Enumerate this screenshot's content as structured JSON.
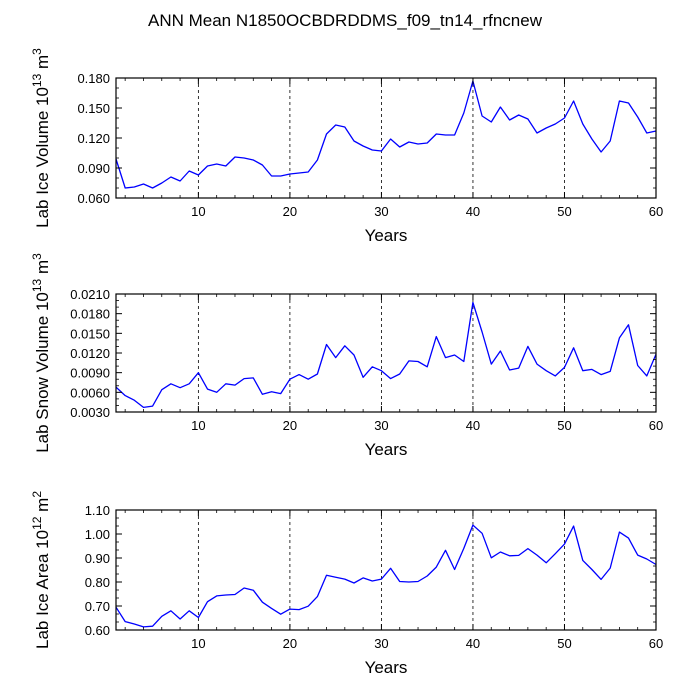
{
  "title": "ANN Mean N1850OCBDRDDMS_f09_tn14_rfncnew",
  "line_color": "#0000ff",
  "chart_data": [
    {
      "type": "line",
      "ylabel": "Lab Ice Volume 10",
      "ylabel_exp": "13",
      "ylabel_unit": "m",
      "ylabel_unit_exp": "3",
      "xlabel": "Years",
      "xlim": [
        1,
        60
      ],
      "ylim": [
        0.06,
        0.18
      ],
      "xticks": [
        10,
        20,
        30,
        40,
        50,
        60
      ],
      "yticks": [
        0.06,
        0.09,
        0.12,
        0.15,
        0.18
      ],
      "ytick_labels": [
        "0.060",
        "0.090",
        "0.120",
        "0.150",
        "0.180"
      ],
      "grid": "vertical dashed at x ticks",
      "series": [
        {
          "x": [
            1,
            2,
            3,
            4,
            5,
            6,
            7,
            8,
            9,
            10,
            11,
            12,
            13,
            14,
            15,
            16,
            17,
            18,
            19,
            20,
            21,
            22,
            23,
            24,
            25,
            26,
            27,
            28,
            29,
            30,
            31,
            32,
            33,
            34,
            35,
            36,
            37,
            38,
            39,
            40,
            41,
            42,
            43,
            44,
            45,
            46,
            47,
            48,
            49,
            50,
            51,
            52,
            53,
            54,
            55,
            56,
            57,
            58,
            59,
            60
          ],
          "values": [
            0.099,
            0.07,
            0.071,
            0.074,
            0.07,
            0.075,
            0.081,
            0.077,
            0.087,
            0.083,
            0.092,
            0.094,
            0.092,
            0.101,
            0.1,
            0.098,
            0.093,
            0.082,
            0.082,
            0.084,
            0.085,
            0.086,
            0.098,
            0.124,
            0.133,
            0.131,
            0.117,
            0.112,
            0.108,
            0.107,
            0.119,
            0.111,
            0.116,
            0.114,
            0.115,
            0.124,
            0.123,
            0.123,
            0.145,
            0.177,
            0.142,
            0.136,
            0.151,
            0.138,
            0.143,
            0.139,
            0.125,
            0.13,
            0.134,
            0.14,
            0.157,
            0.134,
            0.119,
            0.106,
            0.117,
            0.157,
            0.155,
            0.141,
            0.125,
            0.127
          ]
        }
      ]
    },
    {
      "type": "line",
      "ylabel": "Lab Snow Volume 10",
      "ylabel_exp": "13",
      "ylabel_unit": "m",
      "ylabel_unit_exp": "3",
      "xlabel": "Years",
      "xlim": [
        1,
        60
      ],
      "ylim": [
        0.003,
        0.021
      ],
      "xticks": [
        10,
        20,
        30,
        40,
        50,
        60
      ],
      "yticks": [
        0.003,
        0.006,
        0.009,
        0.012,
        0.015,
        0.018,
        0.021
      ],
      "ytick_labels": [
        "0.0030",
        "0.0060",
        "0.0090",
        "0.0120",
        "0.0150",
        "0.0180",
        "0.0210"
      ],
      "grid": "vertical dashed at x ticks",
      "series": [
        {
          "x": [
            1,
            2,
            3,
            4,
            5,
            6,
            7,
            8,
            9,
            10,
            11,
            12,
            13,
            14,
            15,
            16,
            17,
            18,
            19,
            20,
            21,
            22,
            23,
            24,
            25,
            26,
            27,
            28,
            29,
            30,
            31,
            32,
            33,
            34,
            35,
            36,
            37,
            38,
            39,
            40,
            41,
            42,
            43,
            44,
            45,
            46,
            47,
            48,
            49,
            50,
            51,
            52,
            53,
            54,
            55,
            56,
            57,
            58,
            59,
            60
          ],
          "values": [
            0.0068,
            0.0055,
            0.0048,
            0.0037,
            0.0039,
            0.0064,
            0.0073,
            0.0067,
            0.0073,
            0.009,
            0.0065,
            0.006,
            0.0073,
            0.0071,
            0.0081,
            0.0082,
            0.0057,
            0.0061,
            0.0058,
            0.008,
            0.0087,
            0.008,
            0.0088,
            0.0133,
            0.0113,
            0.0131,
            0.0117,
            0.0083,
            0.0099,
            0.0093,
            0.0081,
            0.0088,
            0.0108,
            0.0107,
            0.0099,
            0.0145,
            0.0113,
            0.0117,
            0.0107,
            0.0197,
            0.0152,
            0.0103,
            0.0123,
            0.0094,
            0.0097,
            0.013,
            0.0103,
            0.0093,
            0.0085,
            0.0098,
            0.0128,
            0.0093,
            0.0095,
            0.0087,
            0.0092,
            0.0143,
            0.0163,
            0.0101,
            0.0085,
            0.0118
          ]
        }
      ]
    },
    {
      "type": "line",
      "ylabel": "Lab Ice Area 10",
      "ylabel_exp": "12",
      "ylabel_unit": "m",
      "ylabel_unit_exp": "2",
      "xlabel": "Years",
      "xlim": [
        1,
        60
      ],
      "ylim": [
        0.6,
        1.1
      ],
      "xticks": [
        10,
        20,
        30,
        40,
        50,
        60
      ],
      "yticks": [
        0.6,
        0.7,
        0.8,
        0.9,
        1.0,
        1.1
      ],
      "ytick_labels": [
        "0.60",
        "0.70",
        "0.80",
        "0.90",
        "1.00",
        "1.10"
      ],
      "grid": "vertical dashed at x ticks",
      "series": [
        {
          "x": [
            1,
            2,
            3,
            4,
            5,
            6,
            7,
            8,
            9,
            10,
            11,
            12,
            13,
            14,
            15,
            16,
            17,
            18,
            19,
            20,
            21,
            22,
            23,
            24,
            25,
            26,
            27,
            28,
            29,
            30,
            31,
            32,
            33,
            34,
            35,
            36,
            37,
            38,
            39,
            40,
            41,
            42,
            43,
            44,
            45,
            46,
            47,
            48,
            49,
            50,
            51,
            52,
            53,
            54,
            55,
            56,
            57,
            58,
            59,
            60
          ],
          "values": [
            0.695,
            0.635,
            0.625,
            0.613,
            0.616,
            0.657,
            0.68,
            0.646,
            0.68,
            0.652,
            0.718,
            0.742,
            0.746,
            0.748,
            0.775,
            0.766,
            0.716,
            0.69,
            0.666,
            0.687,
            0.685,
            0.699,
            0.739,
            0.828,
            0.82,
            0.812,
            0.796,
            0.817,
            0.804,
            0.812,
            0.857,
            0.802,
            0.8,
            0.802,
            0.825,
            0.862,
            0.932,
            0.852,
            0.94,
            1.037,
            1.003,
            0.901,
            0.925,
            0.909,
            0.911,
            0.939,
            0.912,
            0.88,
            0.918,
            0.958,
            1.033,
            0.89,
            0.852,
            0.811,
            0.858,
            1.008,
            0.983,
            0.912,
            0.896,
            0.873
          ]
        }
      ]
    }
  ]
}
